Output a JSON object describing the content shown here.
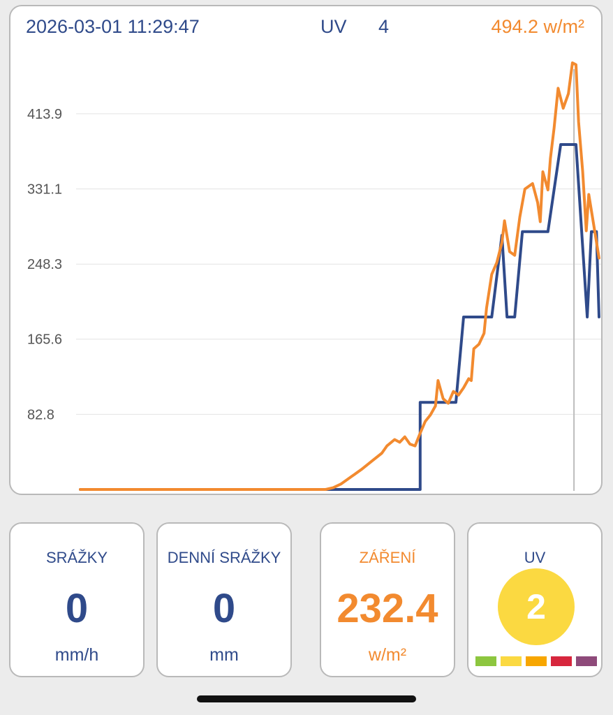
{
  "header": {
    "timestamp": "2026-03-01 11:29:47",
    "uv_label": "UV",
    "uv_value": "4",
    "radiation": "494.2 w/m²"
  },
  "colors": {
    "radiation_line": "#f28a2f",
    "uv_line": "#2f4a8a",
    "uv_badge": "#fbd941",
    "uv_scale": [
      "#8dc63f",
      "#fbd941",
      "#f7a600",
      "#d7263d",
      "#8e4a7a"
    ]
  },
  "chart_data": {
    "type": "line",
    "yticks": [
      "82.8",
      "165.6",
      "248.3",
      "331.1",
      "413.9"
    ],
    "ylim": [
      0,
      500
    ],
    "xlim": [
      0,
      100
    ],
    "grid": true,
    "cursor_x": 96.6,
    "series": [
      {
        "key": "radiation",
        "color": "#f28a2f",
        "points": [
          [
            0,
            0
          ],
          [
            48,
            0
          ],
          [
            49.5,
            2
          ],
          [
            51,
            6
          ],
          [
            53,
            14
          ],
          [
            55,
            22
          ],
          [
            57,
            31
          ],
          [
            59,
            40
          ],
          [
            60,
            48
          ],
          [
            61.5,
            55
          ],
          [
            62.5,
            52
          ],
          [
            63.5,
            58
          ],
          [
            64.5,
            50
          ],
          [
            65.5,
            48
          ],
          [
            66.5,
            62
          ],
          [
            67.5,
            75
          ],
          [
            68.5,
            82
          ],
          [
            69.5,
            92
          ],
          [
            70,
            120
          ],
          [
            71,
            100
          ],
          [
            72,
            95
          ],
          [
            73,
            108
          ],
          [
            74,
            104
          ],
          [
            75,
            112
          ],
          [
            76,
            122
          ],
          [
            76.5,
            120
          ],
          [
            77,
            155
          ],
          [
            78,
            160
          ],
          [
            79,
            172
          ],
          [
            79.5,
            200
          ],
          [
            80.5,
            237
          ],
          [
            81.5,
            250
          ],
          [
            82.5,
            272
          ],
          [
            83,
            296
          ],
          [
            84,
            262
          ],
          [
            85,
            258
          ],
          [
            86,
            300
          ],
          [
            87,
            331
          ],
          [
            88.5,
            337
          ],
          [
            89.5,
            316
          ],
          [
            90,
            295
          ],
          [
            90.5,
            350
          ],
          [
            91.5,
            330
          ],
          [
            92,
            365
          ],
          [
            92.7,
            398
          ],
          [
            93.5,
            442
          ],
          [
            94.5,
            420
          ],
          [
            95.5,
            436
          ],
          [
            96.3,
            470
          ],
          [
            97,
            468
          ],
          [
            97.5,
            405
          ],
          [
            98.3,
            350
          ],
          [
            99,
            285
          ],
          [
            99.5,
            325
          ],
          [
            100.5,
            290
          ],
          [
            101.5,
            255
          ]
        ]
      },
      {
        "key": "uv",
        "color": "#2f4a8a",
        "points": [
          [
            0,
            0
          ],
          [
            64.5,
            0
          ],
          [
            64.5,
            0
          ],
          [
            66.5,
            0
          ],
          [
            66.5,
            96
          ],
          [
            72.5,
            96
          ],
          [
            73.5,
            96
          ],
          [
            75,
            190
          ],
          [
            76.5,
            190
          ],
          [
            79,
            190
          ],
          [
            80.5,
            190
          ],
          [
            82.5,
            280
          ],
          [
            83.5,
            190
          ],
          [
            85,
            190
          ],
          [
            86.5,
            284
          ],
          [
            90.5,
            284
          ],
          [
            91.5,
            284
          ],
          [
            94,
            380
          ],
          [
            96.3,
            380
          ],
          [
            97,
            380
          ],
          [
            99.2,
            190
          ],
          [
            100,
            284
          ],
          [
            101,
            284
          ],
          [
            101.5,
            190
          ]
        ]
      }
    ]
  },
  "tiles": {
    "precip": {
      "label": "SRÁŽKY",
      "value": "0",
      "unit": "mm/h"
    },
    "daily_precip": {
      "label": "DENNÍ SRÁŽKY",
      "value": "0",
      "unit": "mm"
    },
    "radiation": {
      "label": "ZÁŘENÍ",
      "value": "232.4",
      "unit": "w/m²"
    },
    "uv": {
      "label": "UV",
      "value": "2"
    }
  }
}
